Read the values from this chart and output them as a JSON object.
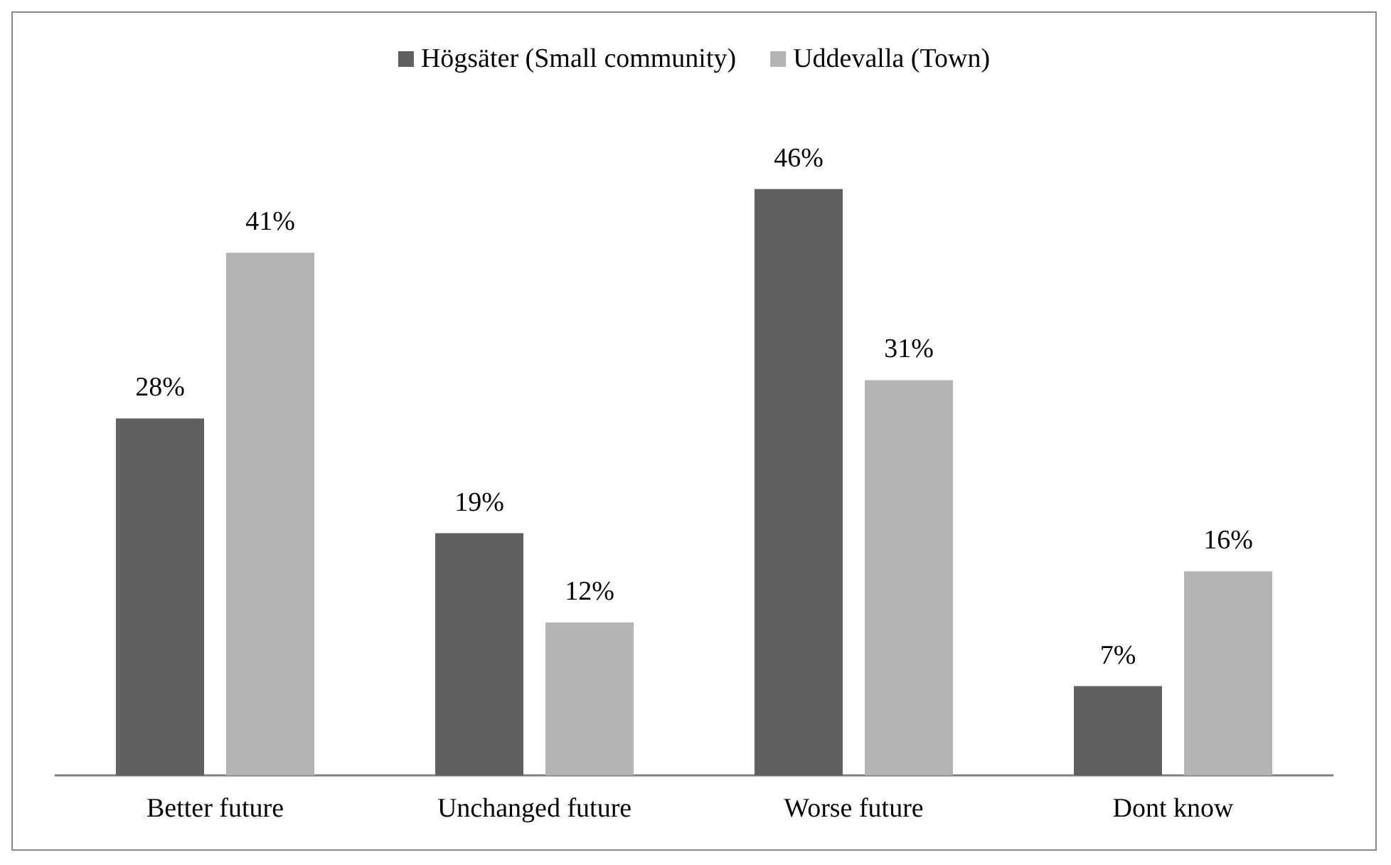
{
  "chart_data": {
    "type": "bar",
    "categories": [
      "Better future",
      "Unchanged future",
      "Worse future",
      "Dont know"
    ],
    "series": [
      {
        "name": "Högsäter (Small community)",
        "color": "#606060",
        "values": [
          28,
          19,
          46,
          7
        ],
        "value_labels": [
          "28%",
          "19%",
          "46%",
          "7%"
        ]
      },
      {
        "name": "Uddevalla (Town)",
        "color": "#b3b3b3",
        "values": [
          41,
          12,
          31,
          16
        ],
        "value_labels": [
          "41%",
          "12%",
          "31%",
          "16%"
        ]
      }
    ],
    "legend": "top"
  }
}
